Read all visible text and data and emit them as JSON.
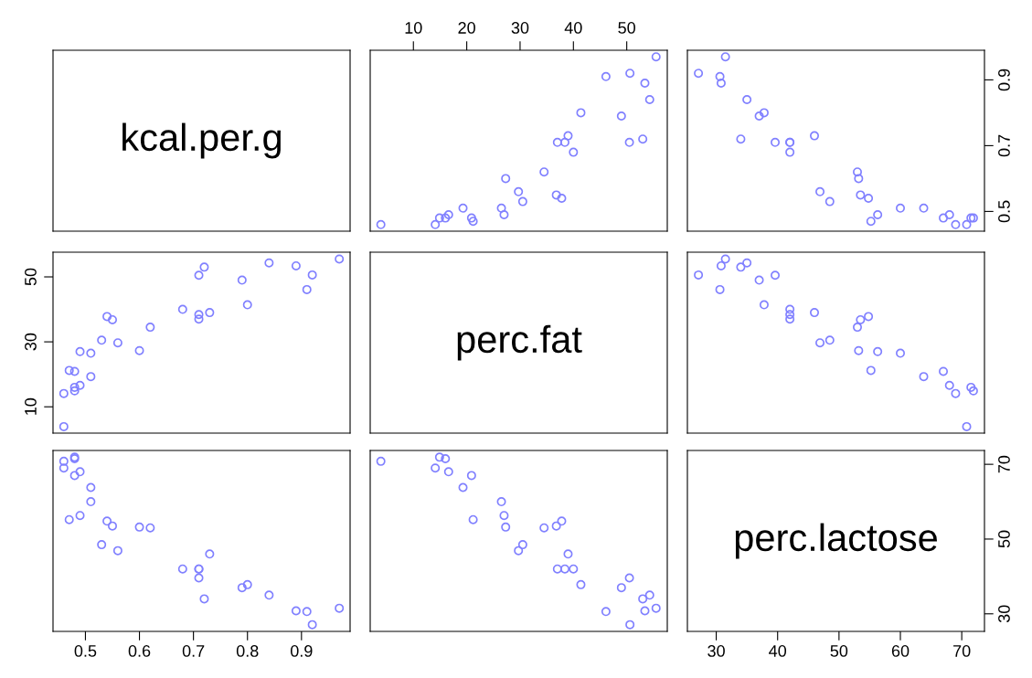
{
  "chart_data": [
    {
      "type": "other",
      "title": "kcal.per.g"
    },
    {
      "type": "scatter",
      "marker": "circle",
      "tick_labels": "x",
      "xlim": [
        1.9,
        57.6
      ],
      "ylim": [
        0.44,
        0.99
      ],
      "xticks": [
        10,
        20,
        30,
        40,
        50
      ],
      "x": [
        16.6,
        19.3,
        14.1,
        14.9,
        27.3,
        21.2,
        29.7,
        53.4,
        46.1,
        50.6,
        41.4,
        3.9,
        38.4,
        37.0,
        39.0,
        40.0,
        53.0,
        55.5,
        49.0,
        54.3,
        16.0,
        34.5,
        26.5,
        37.8,
        27.0,
        30.5,
        20.9,
        36.8,
        50.5
      ],
      "series": [
        {
          "color": "#8080ff",
          "values": [
            0.49,
            0.51,
            0.46,
            0.48,
            0.6,
            0.47,
            0.56,
            0.89,
            0.91,
            0.92,
            0.8,
            0.46,
            0.71,
            0.71,
            0.73,
            0.68,
            0.72,
            0.97,
            0.79,
            0.84,
            0.48,
            0.62,
            0.51,
            0.54,
            0.49,
            0.53,
            0.48,
            0.55,
            0.71
          ]
        }
      ]
    },
    {
      "type": "scatter",
      "marker": "circle",
      "tick_labels": "y",
      "xlim": [
        25.3,
        73.7
      ],
      "ylim": [
        0.44,
        0.99
      ],
      "yticks": [
        0.5,
        0.7,
        0.9
      ],
      "x": [
        68.0,
        63.8,
        69.0,
        71.9,
        53.2,
        55.2,
        46.9,
        30.8,
        30.6,
        27.1,
        37.8,
        70.8,
        42.0,
        42.0,
        46.0,
        42.0,
        34.0,
        31.5,
        37.0,
        35.0,
        71.5,
        53.0,
        60.0,
        54.8,
        56.3,
        48.5,
        67.0,
        53.5,
        39.6
      ],
      "series": [
        {
          "color": "#8080ff",
          "values": [
            0.49,
            0.51,
            0.46,
            0.48,
            0.6,
            0.47,
            0.56,
            0.89,
            0.91,
            0.92,
            0.8,
            0.46,
            0.71,
            0.71,
            0.73,
            0.68,
            0.72,
            0.97,
            0.79,
            0.84,
            0.48,
            0.62,
            0.51,
            0.54,
            0.49,
            0.53,
            0.48,
            0.55,
            0.71
          ]
        }
      ]
    },
    {
      "type": "scatter",
      "marker": "circle",
      "tick_labels": "y",
      "xlim": [
        0.44,
        0.99
      ],
      "ylim": [
        1.9,
        57.6
      ],
      "yticks": [
        10,
        30,
        50
      ],
      "x": [
        0.49,
        0.51,
        0.46,
        0.48,
        0.6,
        0.47,
        0.56,
        0.89,
        0.91,
        0.92,
        0.8,
        0.46,
        0.71,
        0.71,
        0.73,
        0.68,
        0.72,
        0.97,
        0.79,
        0.84,
        0.48,
        0.62,
        0.51,
        0.54,
        0.49,
        0.53,
        0.48,
        0.55,
        0.71
      ],
      "series": [
        {
          "color": "#8080ff",
          "values": [
            16.6,
            19.3,
            14.1,
            14.9,
            27.3,
            21.2,
            29.7,
            53.4,
            46.1,
            50.6,
            41.4,
            3.9,
            38.4,
            37.0,
            39.0,
            40.0,
            53.0,
            55.5,
            49.0,
            54.3,
            16.0,
            34.5,
            26.5,
            37.8,
            27.0,
            30.5,
            20.9,
            36.8,
            50.5
          ]
        }
      ]
    },
    {
      "type": "other",
      "title": "perc.fat"
    },
    {
      "type": "scatter",
      "marker": "circle",
      "tick_labels": false,
      "xlim": [
        25.3,
        73.7
      ],
      "ylim": [
        1.9,
        57.6
      ],
      "x": [
        68.0,
        63.8,
        69.0,
        71.9,
        53.2,
        55.2,
        46.9,
        30.8,
        30.6,
        27.1,
        37.8,
        70.8,
        42.0,
        42.0,
        46.0,
        42.0,
        34.0,
        31.5,
        37.0,
        35.0,
        71.5,
        53.0,
        60.0,
        54.8,
        56.3,
        48.5,
        67.0,
        53.5,
        39.6
      ],
      "series": [
        {
          "color": "#8080ff",
          "values": [
            16.6,
            19.3,
            14.1,
            14.9,
            27.3,
            21.2,
            29.7,
            53.4,
            46.1,
            50.6,
            41.4,
            3.9,
            38.4,
            37.0,
            39.0,
            40.0,
            53.0,
            55.5,
            49.0,
            54.3,
            16.0,
            34.5,
            26.5,
            37.8,
            27.0,
            30.5,
            20.9,
            36.8,
            50.5
          ]
        }
      ]
    },
    {
      "type": "scatter",
      "marker": "circle",
      "tick_labels": "x",
      "xlim": [
        0.44,
        0.99
      ],
      "ylim": [
        25.3,
        73.7
      ],
      "xticks": [
        0.5,
        0.6,
        0.7,
        0.8,
        0.9
      ],
      "x": [
        0.49,
        0.51,
        0.46,
        0.48,
        0.6,
        0.47,
        0.56,
        0.89,
        0.91,
        0.92,
        0.8,
        0.46,
        0.71,
        0.71,
        0.73,
        0.68,
        0.72,
        0.97,
        0.79,
        0.84,
        0.48,
        0.62,
        0.51,
        0.54,
        0.49,
        0.53,
        0.48,
        0.55,
        0.71
      ],
      "series": [
        {
          "color": "#8080ff",
          "values": [
            68.0,
            63.8,
            69.0,
            71.9,
            53.2,
            55.2,
            46.9,
            30.8,
            30.6,
            27.1,
            37.8,
            70.8,
            42.0,
            42.0,
            46.0,
            42.0,
            34.0,
            31.5,
            37.0,
            35.0,
            71.5,
            53.0,
            60.0,
            54.8,
            56.3,
            48.5,
            67.0,
            53.5,
            39.6
          ]
        }
      ]
    },
    {
      "type": "scatter",
      "marker": "circle",
      "tick_labels": false,
      "xlim": [
        1.9,
        57.6
      ],
      "ylim": [
        25.3,
        73.7
      ],
      "x": [
        16.6,
        19.3,
        14.1,
        14.9,
        27.3,
        21.2,
        29.7,
        53.4,
        46.1,
        50.6,
        41.4,
        3.9,
        38.4,
        37.0,
        39.0,
        40.0,
        53.0,
        55.5,
        49.0,
        54.3,
        16.0,
        34.5,
        26.5,
        37.8,
        27.0,
        30.5,
        20.9,
        36.8,
        50.5
      ],
      "series": [
        {
          "color": "#8080ff",
          "values": [
            68.0,
            63.8,
            69.0,
            71.9,
            53.2,
            55.2,
            46.9,
            30.8,
            30.6,
            27.1,
            37.8,
            70.8,
            42.0,
            42.0,
            46.0,
            42.0,
            34.0,
            31.5,
            37.0,
            35.0,
            71.5,
            53.0,
            60.0,
            54.8,
            56.3,
            48.5,
            67.0,
            53.5,
            39.6
          ]
        }
      ]
    },
    {
      "type": "scatter",
      "title": "perc.lactose",
      "xlim": [
        25.3,
        73.7
      ],
      "xticks": [
        30,
        40,
        50,
        60,
        70
      ],
      "ylim": [
        25.3,
        73.7
      ],
      "yticks": [
        30,
        50,
        70
      ]
    }
  ]
}
